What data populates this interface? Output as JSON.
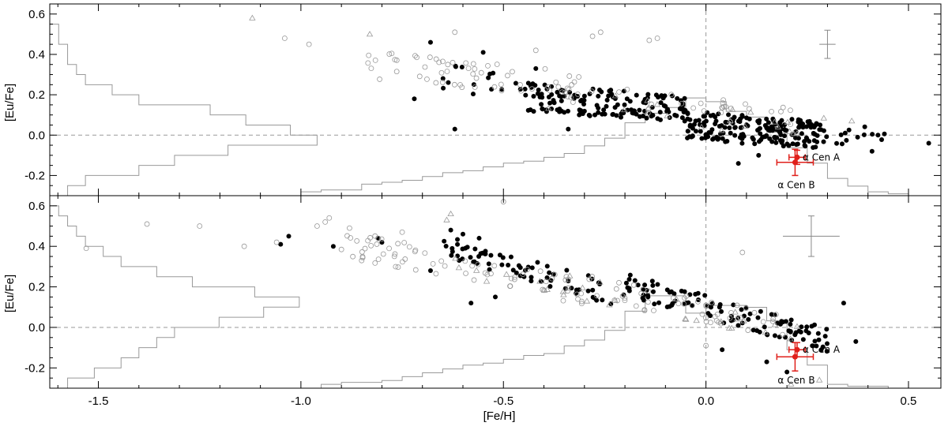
{
  "chart_data": [
    {
      "type": "scatter",
      "panel": "top",
      "title": "",
      "xlabel": "",
      "ylabel": "[Eu/Fe]",
      "xlim": [
        -1.62,
        0.58
      ],
      "ylim": [
        -0.3,
        0.65
      ],
      "xticks": [
        -1.5,
        -1.0,
        -0.5,
        0.0,
        0.5
      ],
      "yticks": [
        -0.2,
        0.0,
        0.2,
        0.4,
        0.6
      ],
      "ytick_labels": [
        "-0.2",
        "0.0",
        "0.2",
        "0.4",
        "0.6"
      ],
      "grid": false,
      "reference_lines": {
        "x": 0.0,
        "y": 0.0
      },
      "error_bar": {
        "x": 0.3,
        "y": 0.45,
        "xerr": 0.02,
        "yerr": 0.07
      },
      "series": [
        {
          "marker": "filled-circle",
          "color": "#000000",
          "seed": 17,
          "groups": [
            {
              "n": 150,
              "x": [
                -0.45,
                -0.05
              ],
              "y": [
                0.1,
                0.22
              ],
              "slope": -0.15,
              "spread": 0.07
            },
            {
              "n": 180,
              "x": [
                -0.05,
                0.28
              ],
              "y": [
                0.0,
                0.05
              ],
              "slope": -0.15,
              "spread": 0.07
            },
            {
              "n": 25,
              "x": [
                0.25,
                0.45
              ],
              "y": [
                -0.05,
                0.05
              ],
              "slope": -0.1,
              "spread": 0.05
            },
            {
              "n": 15,
              "x": [
                -0.72,
                -0.45
              ],
              "y": [
                0.2,
                0.35
              ],
              "slope": -0.2,
              "spread": 0.07
            }
          ],
          "points": [
            [
              -0.68,
              0.46
            ],
            [
              -0.55,
              0.41
            ],
            [
              -0.42,
              0.33
            ],
            [
              0.55,
              -0.04
            ],
            [
              0.41,
              -0.08
            ],
            [
              -0.72,
              0.18
            ],
            [
              -0.34,
              0.03
            ],
            [
              -0.62,
              0.03
            ],
            [
              0.08,
              -0.14
            ],
            [
              0.13,
              -0.1
            ]
          ]
        },
        {
          "marker": "open-circle",
          "color": "#999999",
          "seed": 29,
          "groups": [
            {
              "n": 60,
              "x": [
                -0.85,
                -0.3
              ],
              "y": [
                0.2,
                0.4
              ],
              "slope": -0.2,
              "spread": 0.07
            },
            {
              "n": 30,
              "x": [
                -0.4,
                0.25
              ],
              "y": [
                0.05,
                0.25
              ],
              "slope": -0.2,
              "spread": 0.06
            }
          ],
          "points": [
            [
              -1.04,
              0.48
            ],
            [
              -0.98,
              0.45
            ],
            [
              -0.62,
              0.51
            ],
            [
              -0.42,
              0.42
            ],
            [
              -0.26,
              0.51
            ],
            [
              -0.28,
              0.49
            ],
            [
              -0.14,
              0.47
            ],
            [
              -0.12,
              0.48
            ]
          ]
        },
        {
          "marker": "open-triangle",
          "color": "#999999",
          "seed": 41,
          "groups": [
            {
              "n": 20,
              "x": [
                -0.4,
                0.3
              ],
              "y": [
                -0.05,
                0.25
              ],
              "slope": -0.2,
              "spread": 0.06
            }
          ],
          "points": [
            [
              -1.12,
              0.58
            ],
            [
              -0.83,
              0.5
            ],
            [
              0.36,
              0.07
            ]
          ]
        },
        {
          "name": "α Cen A",
          "marker": "red-point",
          "color": "#e0201b",
          "x": [
            0.225
          ],
          "y": [
            -0.11
          ],
          "xerr": 0.02,
          "yerr": 0.035,
          "label": "α Cen A"
        },
        {
          "name": "α Cen B",
          "marker": "red-point",
          "color": "#e0201b",
          "x": [
            0.22
          ],
          "y": [
            -0.135
          ],
          "xerr": 0.045,
          "yerr": 0.065,
          "label": "α Cen B"
        }
      ],
      "histogram_feh": {
        "color": "#999999",
        "bins": [
          -1.0,
          -0.95,
          -0.9,
          -0.85,
          -0.8,
          -0.75,
          -0.7,
          -0.65,
          -0.6,
          -0.55,
          -0.5,
          -0.45,
          -0.4,
          -0.35,
          -0.3,
          -0.25,
          -0.2,
          -0.15,
          -0.1,
          -0.05,
          0.0,
          0.05,
          0.1,
          0.15,
          0.2,
          0.25,
          0.3,
          0.35,
          0.4,
          0.45
        ],
        "heights": [
          0.02,
          0.03,
          0.03,
          0.06,
          0.07,
          0.08,
          0.1,
          0.12,
          0.13,
          0.15,
          0.17,
          0.18,
          0.2,
          0.22,
          0.26,
          0.3,
          0.38,
          0.43,
          0.46,
          0.51,
          0.49,
          0.44,
          0.41,
          0.33,
          0.25,
          0.17,
          0.09,
          0.05,
          0.02,
          0.01
        ]
      },
      "histogram_eufe": {
        "color": "#999999",
        "bins": [
          -0.3,
          -0.25,
          -0.2,
          -0.15,
          -0.1,
          -0.05,
          0.0,
          0.05,
          0.1,
          0.15,
          0.2,
          0.25,
          0.3,
          0.35,
          0.4,
          0.45,
          0.5,
          0.55,
          0.6
        ],
        "lengths": [
          0.02,
          0.04,
          0.1,
          0.14,
          0.2,
          0.3,
          0.27,
          0.22,
          0.18,
          0.1,
          0.07,
          0.04,
          0.03,
          0.02,
          0.02,
          0.01,
          0.01,
          0.0,
          0.0
        ]
      }
    },
    {
      "type": "scatter",
      "panel": "bottom",
      "title": "",
      "xlabel": "[Fe/H]",
      "ylabel": "[Eu/Fe]",
      "xlim": [
        -1.62,
        0.58
      ],
      "ylim": [
        -0.3,
        0.65
      ],
      "xticks": [
        -1.5,
        -1.0,
        -0.5,
        0.0,
        0.5
      ],
      "xtick_labels": [
        "-1.5",
        "-1.0",
        "-0.5",
        "0.0",
        "0.5"
      ],
      "yticks": [
        -0.2,
        0.0,
        0.2,
        0.4,
        0.6
      ],
      "ytick_labels": [
        "-0.2",
        "0.0",
        "0.2",
        "0.4",
        "0.6"
      ],
      "grid": false,
      "reference_lines": {
        "x": 0.0,
        "y": 0.0
      },
      "error_bar": {
        "x": 0.26,
        "y": 0.45,
        "xerr": 0.07,
        "yerr": 0.1
      },
      "series": [
        {
          "marker": "filled-circle",
          "color": "#000000",
          "seed": 53,
          "groups": [
            {
              "n": 70,
              "x": [
                -0.65,
                -0.2
              ],
              "y": [
                0.15,
                0.4
              ],
              "slope": -0.55,
              "spread": 0.06
            },
            {
              "n": 110,
              "x": [
                -0.2,
                0.3
              ],
              "y": [
                -0.05,
                0.2
              ],
              "slope": -0.55,
              "spread": 0.06
            }
          ],
          "points": [
            [
              -1.05,
              0.41
            ],
            [
              -1.03,
              0.45
            ],
            [
              -0.92,
              0.4
            ],
            [
              -0.81,
              0.44
            ],
            [
              -0.8,
              0.42
            ],
            [
              -0.63,
              0.48
            ],
            [
              -0.6,
              0.46
            ],
            [
              -0.56,
              0.44
            ],
            [
              -0.58,
              0.12
            ],
            [
              -0.52,
              0.15
            ],
            [
              -0.68,
              0.28
            ],
            [
              0.34,
              0.12
            ],
            [
              0.37,
              -0.07
            ],
            [
              0.2,
              -0.22
            ],
            [
              0.15,
              -0.17
            ],
            [
              0.04,
              -0.11
            ]
          ]
        },
        {
          "marker": "open-circle",
          "color": "#999999",
          "seed": 67,
          "groups": [
            {
              "n": 70,
              "x": [
                -0.9,
                -0.3
              ],
              "y": [
                0.15,
                0.45
              ],
              "slope": -0.4,
              "spread": 0.07
            },
            {
              "n": 50,
              "x": [
                -0.3,
                0.2
              ],
              "y": [
                0.0,
                0.2
              ],
              "slope": -0.4,
              "spread": 0.06
            }
          ],
          "points": [
            [
              -1.53,
              0.39
            ],
            [
              -1.38,
              0.51
            ],
            [
              -1.25,
              0.5
            ],
            [
              -1.14,
              0.4
            ],
            [
              -1.06,
              0.42
            ],
            [
              -0.96,
              0.5
            ],
            [
              -0.94,
              0.52
            ],
            [
              -0.93,
              0.54
            ],
            [
              -0.88,
              0.49
            ],
            [
              -0.85,
              0.33
            ],
            [
              -0.75,
              0.47
            ],
            [
              -0.5,
              0.62
            ],
            [
              0.09,
              0.37
            ],
            [
              0.0,
              -0.09
            ]
          ]
        },
        {
          "marker": "open-triangle",
          "color": "#999999",
          "seed": 79,
          "groups": [
            {
              "n": 30,
              "x": [
                -0.65,
                0.25
              ],
              "y": [
                -0.05,
                0.35
              ],
              "slope": -0.4,
              "spread": 0.06
            }
          ],
          "points": [
            [
              -0.63,
              0.56
            ],
            [
              -0.64,
              0.53
            ],
            [
              0.21,
              -0.28
            ],
            [
              0.28,
              -0.26
            ]
          ]
        },
        {
          "name": "α Cen A",
          "marker": "red-point",
          "color": "#e0201b",
          "x": [
            0.225
          ],
          "y": [
            -0.11
          ],
          "xerr": 0.02,
          "yerr": 0.035,
          "label": "α Cen A"
        },
        {
          "name": "α Cen B",
          "marker": "red-point",
          "color": "#e0201b",
          "x": [
            0.22
          ],
          "y": [
            -0.145
          ],
          "xerr": 0.045,
          "yerr": 0.07,
          "label": "α Cen B"
        }
      ],
      "histogram_feh": {
        "color": "#999999",
        "bins": [
          -1.0,
          -0.95,
          -0.9,
          -0.85,
          -0.8,
          -0.75,
          -0.7,
          -0.65,
          -0.6,
          -0.55,
          -0.5,
          -0.45,
          -0.4,
          -0.35,
          -0.3,
          -0.25,
          -0.2,
          -0.15,
          -0.1,
          -0.05,
          0.0,
          0.05,
          0.1,
          0.15,
          0.2,
          0.25,
          0.3,
          0.35,
          0.4,
          0.45
        ],
        "heights": [
          0.0,
          0.02,
          0.03,
          0.03,
          0.04,
          0.06,
          0.08,
          0.1,
          0.12,
          0.13,
          0.15,
          0.17,
          0.18,
          0.22,
          0.25,
          0.3,
          0.4,
          0.48,
          0.48,
          0.39,
          0.43,
          0.43,
          0.42,
          0.35,
          0.2,
          0.12,
          0.02,
          0.01,
          0.01,
          0.0
        ]
      },
      "histogram_eufe": {
        "color": "#999999",
        "bins": [
          -0.3,
          -0.25,
          -0.2,
          -0.15,
          -0.1,
          -0.05,
          0.0,
          0.05,
          0.1,
          0.15,
          0.2,
          0.25,
          0.3,
          0.35,
          0.4,
          0.45,
          0.5,
          0.55,
          0.6
        ],
        "lengths": [
          0.02,
          0.05,
          0.08,
          0.1,
          0.12,
          0.14,
          0.19,
          0.24,
          0.28,
          0.23,
          0.16,
          0.12,
          0.08,
          0.06,
          0.04,
          0.03,
          0.02,
          0.01,
          0.0
        ]
      }
    }
  ]
}
